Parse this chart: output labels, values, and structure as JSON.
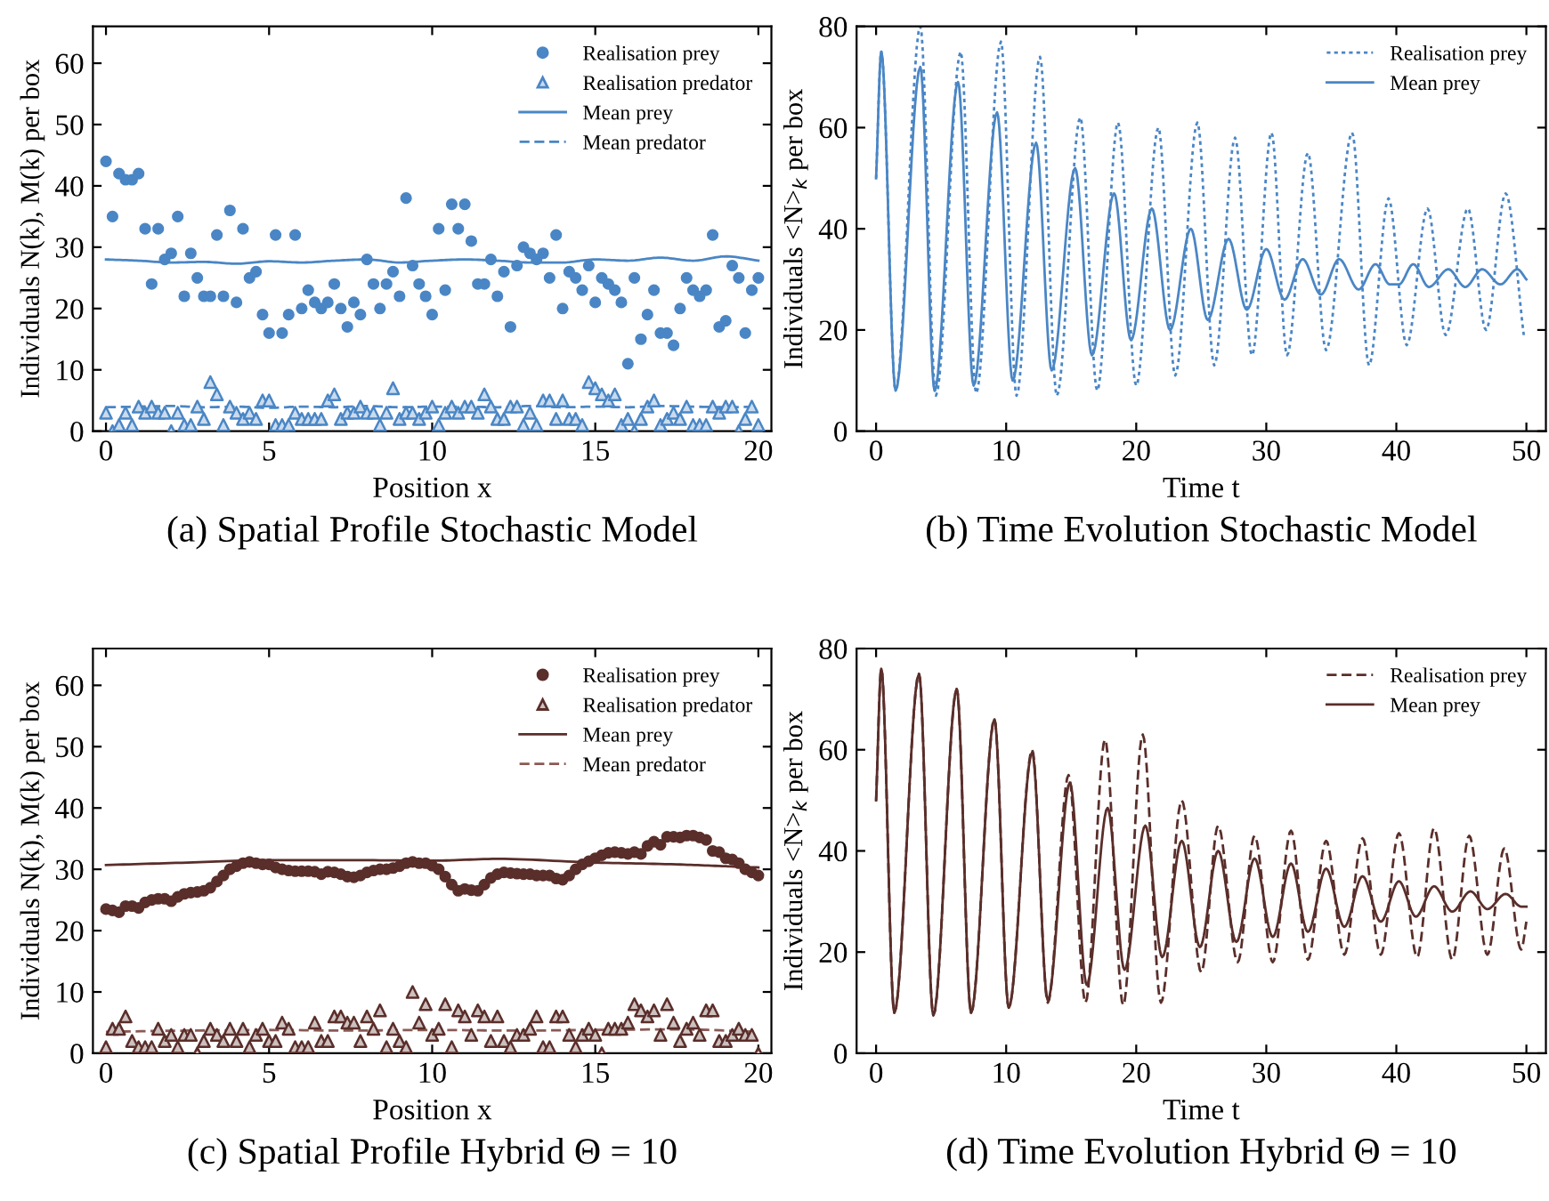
{
  "chart_data": [
    {
      "type": "scatter",
      "title": "(a) Spatial Profile Stochastic Model",
      "xlabel": "Position x",
      "ylabel": "Individuals N(k), M(k) per box",
      "xlim": [
        -0.4,
        20.4
      ],
      "ylim": [
        0,
        66
      ],
      "xticks": [
        0,
        5,
        10,
        15,
        20
      ],
      "yticks": [
        0,
        10,
        20,
        30,
        40,
        50,
        60
      ],
      "legend": "top right",
      "x": [
        0,
        0.2,
        0.4,
        0.6,
        0.8,
        1,
        1.2,
        1.4,
        1.6,
        1.8,
        2,
        2.2,
        2.4,
        2.6,
        2.8,
        3,
        3.2,
        3.4,
        3.6,
        3.8,
        4,
        4.2,
        4.4,
        4.6,
        4.8,
        5,
        5.2,
        5.4,
        5.6,
        5.8,
        6,
        6.2,
        6.4,
        6.6,
        6.8,
        7,
        7.2,
        7.4,
        7.6,
        7.8,
        8,
        8.2,
        8.4,
        8.6,
        8.8,
        9,
        9.2,
        9.4,
        9.6,
        9.8,
        10,
        10.2,
        10.4,
        10.6,
        10.8,
        11,
        11.2,
        11.4,
        11.6,
        11.8,
        12,
        12.2,
        12.4,
        12.6,
        12.8,
        13,
        13.2,
        13.4,
        13.6,
        13.8,
        14,
        14.2,
        14.4,
        14.6,
        14.8,
        15,
        15.2,
        15.4,
        15.6,
        15.8,
        16,
        16.2,
        16.4,
        16.6,
        16.8,
        17,
        17.2,
        17.4,
        17.6,
        17.8,
        18,
        18.2,
        18.4,
        18.6,
        18.8,
        19,
        19.2,
        19.4,
        19.6,
        19.8,
        20
      ],
      "series": [
        {
          "name": "Realisation prey",
          "marker": "circle",
          "color": "#4a86c5",
          "values": [
            44,
            35,
            42,
            41,
            41,
            42,
            33,
            24,
            33,
            28,
            29,
            35,
            22,
            29,
            25,
            22,
            22,
            32,
            22,
            36,
            21,
            33,
            25,
            26,
            19,
            16,
            32,
            16,
            19,
            32,
            20,
            23,
            21,
            20,
            21,
            24,
            20,
            17,
            21,
            19,
            28,
            24,
            20,
            24,
            26,
            22,
            38,
            27,
            24,
            22,
            19,
            33,
            23,
            37,
            33,
            37,
            31,
            24,
            24,
            28,
            22,
            26,
            17,
            27,
            30,
            29,
            28,
            29,
            25,
            32,
            20,
            26,
            25,
            23,
            27,
            21,
            25,
            24,
            23,
            21,
            11,
            25,
            15,
            19,
            23,
            16,
            16,
            14,
            20,
            25,
            23,
            22,
            23,
            32,
            17,
            18,
            27,
            25,
            16,
            23,
            25
          ]
        },
        {
          "name": "Realisation predator",
          "marker": "triangle",
          "color": "#4a86c5",
          "values": [
            3,
            0,
            1,
            3,
            1,
            4,
            3,
            4,
            3,
            3,
            0,
            3,
            1,
            1,
            4,
            2,
            8,
            6,
            1,
            4,
            3,
            2,
            3,
            2,
            5,
            5,
            1,
            1,
            1,
            3,
            2,
            2,
            2,
            2,
            5,
            6,
            2,
            3,
            3,
            4,
            3,
            3,
            1,
            3,
            7,
            2,
            3,
            3,
            2,
            3,
            4,
            1,
            3,
            4,
            3,
            4,
            4,
            3,
            6,
            4,
            2,
            2,
            4,
            4,
            1,
            3,
            1,
            5,
            5,
            2,
            5,
            2,
            2,
            1,
            8,
            7,
            6,
            5,
            6,
            1,
            2,
            0,
            2,
            4,
            5,
            1,
            2,
            3,
            2,
            4,
            1,
            1,
            1,
            4,
            3,
            4,
            4,
            0,
            2,
            4,
            1
          ]
        },
        {
          "name": "Mean prey",
          "type": "line",
          "line_style": "solid",
          "color": "#4a86c5",
          "x": [
            0,
            1,
            2,
            3,
            4,
            5,
            6,
            7,
            8,
            9,
            10,
            11,
            12,
            13,
            14,
            15,
            16,
            17,
            18,
            19,
            20
          ],
          "values": [
            28,
            27.8,
            27.5,
            27.6,
            27.3,
            27.7,
            27.5,
            27.8,
            28,
            27.5,
            27.8,
            28,
            27.8,
            27.5,
            27.5,
            28,
            27.8,
            28.3,
            27.8,
            28.5,
            27.8
          ]
        },
        {
          "name": "Mean predator",
          "type": "line",
          "line_style": "dashed",
          "color": "#4a86c5",
          "x": [
            0,
            1,
            2,
            3,
            4,
            5,
            6,
            7,
            8,
            9,
            10,
            11,
            12,
            13,
            14,
            15,
            16,
            17,
            18,
            19,
            20
          ],
          "values": [
            3.9,
            4,
            4.1,
            3.9,
            4,
            3.8,
            4,
            3.9,
            4.1,
            3.9,
            4,
            4,
            3.9,
            4.1,
            3.9,
            4,
            3.9,
            4.1,
            4,
            3.9,
            4
          ]
        }
      ]
    },
    {
      "type": "line",
      "title": "(b) Time Evolution Stochastic Model",
      "xlabel": "Time t",
      "ylabel": "Individuals <N>$_{k}$ per box",
      "xlim": [
        -1.5,
        51.5
      ],
      "ylim": [
        0,
        80
      ],
      "xticks": [
        0,
        10,
        20,
        30,
        40,
        50
      ],
      "yticks": [
        0,
        20,
        40,
        60,
        80
      ],
      "legend": "top right",
      "series": [
        {
          "name": "Realisation prey",
          "line_style": "dotted",
          "color": "#4a86c5",
          "x": [
            0,
            0.4,
            1.5,
            3.4,
            4.6,
            6.5,
            7.7,
            9.6,
            10.8,
            12.6,
            13.9,
            15.7,
            17.0,
            18.6,
            20.0,
            21.7,
            23.0,
            24.7,
            26.0,
            27.6,
            28.9,
            30.4,
            31.6,
            33.2,
            34.6,
            36.6,
            37.9,
            39.4,
            40.8,
            42.4,
            43.8,
            45.5,
            46.9,
            48.4,
            49.8
          ],
          "values": [
            50,
            75,
            8,
            80,
            7,
            75,
            7.5,
            77,
            7,
            74,
            7,
            62,
            8,
            61,
            9,
            60,
            11,
            61,
            13,
            58,
            15,
            59,
            15,
            55,
            16,
            59,
            13,
            46,
            17,
            44,
            19,
            44,
            20,
            47,
            19
          ]
        },
        {
          "name": "Mean prey",
          "line_style": "solid",
          "color": "#4a86c5",
          "x": [
            0,
            0.4,
            1.5,
            3.4,
            4.5,
            6.3,
            7.5,
            9.3,
            10.5,
            12.3,
            13.5,
            15.3,
            16.6,
            18.3,
            19.6,
            21.2,
            22.6,
            24.2,
            25.5,
            27.1,
            28.5,
            30.0,
            31.4,
            32.8,
            34.2,
            35.6,
            37.1,
            38.4,
            39.5,
            40.2,
            41.3,
            42.5,
            44.0,
            45.3,
            46.6,
            48.0,
            49.3,
            50
          ],
          "values": [
            50,
            75,
            8,
            72,
            8,
            69,
            9,
            63,
            10,
            57,
            12,
            52,
            15,
            47,
            18,
            44,
            20,
            40,
            22,
            38,
            24,
            36,
            26,
            34,
            27,
            34,
            28,
            33,
            29,
            29,
            33,
            28.5,
            32,
            28.5,
            32,
            29,
            32,
            30
          ]
        }
      ]
    },
    {
      "type": "scatter",
      "title": "(c) Spatial Profile Hybrid Θ = 10",
      "xlabel": "Position x",
      "ylabel": "Individuals N(k), M(k) per box",
      "xlim": [
        -0.4,
        20.4
      ],
      "ylim": [
        0,
        66
      ],
      "xticks": [
        0,
        5,
        10,
        15,
        20
      ],
      "yticks": [
        0,
        10,
        20,
        30,
        40,
        50,
        60
      ],
      "legend": "top right",
      "x": [
        0,
        0.2,
        0.4,
        0.6,
        0.8,
        1,
        1.2,
        1.4,
        1.6,
        1.8,
        2,
        2.2,
        2.4,
        2.6,
        2.8,
        3,
        3.2,
        3.4,
        3.6,
        3.8,
        4,
        4.2,
        4.4,
        4.6,
        4.8,
        5,
        5.2,
        5.4,
        5.6,
        5.8,
        6,
        6.2,
        6.4,
        6.6,
        6.8,
        7,
        7.2,
        7.4,
        7.6,
        7.8,
        8,
        8.2,
        8.4,
        8.6,
        8.8,
        9,
        9.2,
        9.4,
        9.6,
        9.8,
        10,
        10.2,
        10.4,
        10.6,
        10.8,
        11,
        11.2,
        11.4,
        11.6,
        11.8,
        12,
        12.2,
        12.4,
        12.6,
        12.8,
        13,
        13.2,
        13.4,
        13.6,
        13.8,
        14,
        14.2,
        14.4,
        14.6,
        14.8,
        15,
        15.2,
        15.4,
        15.6,
        15.8,
        16,
        16.2,
        16.4,
        16.6,
        16.8,
        17,
        17.2,
        17.4,
        17.6,
        17.8,
        18,
        18.2,
        18.4,
        18.6,
        18.8,
        19,
        19.2,
        19.4,
        19.6,
        19.8,
        20
      ],
      "series": [
        {
          "name": "Realisation prey",
          "marker": "circle",
          "color": "#5a2e2a",
          "values": [
            23.5,
            23.3,
            23,
            24,
            24,
            23.7,
            24.6,
            25,
            25.2,
            25.2,
            24.8,
            25.5,
            26,
            26.2,
            26.3,
            26.5,
            27,
            28,
            29,
            30,
            30.5,
            31,
            31.2,
            31,
            30.8,
            30.8,
            30.3,
            30,
            29.8,
            29.7,
            29.7,
            29.7,
            29.6,
            29.2,
            29.6,
            29.5,
            29.2,
            28.8,
            28.7,
            29,
            29.5,
            29.8,
            30,
            30,
            30.2,
            30.5,
            31,
            31.2,
            31,
            31,
            30.6,
            30,
            28.8,
            27.5,
            26.5,
            26.8,
            26.6,
            26.5,
            27.5,
            28.6,
            29.2,
            29.5,
            29.4,
            29.3,
            29.2,
            29.2,
            29,
            29,
            29,
            28.5,
            28.3,
            29,
            30,
            30.8,
            31.3,
            31.8,
            32.3,
            32.7,
            32.8,
            32.7,
            32.5,
            32.8,
            32.5,
            33.8,
            34.5,
            34,
            35.3,
            35.3,
            35.2,
            35.5,
            35.5,
            35.2,
            34.8,
            33,
            32.8,
            31.8,
            31.6,
            31,
            30,
            29.5,
            29
          ]
        },
        {
          "name": "Realisation predator",
          "marker": "triangle",
          "color": "#5a2e2a",
          "values": [
            1,
            4,
            4,
            6,
            2,
            1,
            1,
            1,
            4,
            2,
            3,
            1,
            3,
            3,
            0,
            2,
            4,
            3,
            2,
            4,
            2,
            4,
            1,
            3,
            4,
            2,
            2,
            5,
            4,
            1,
            1,
            1,
            5,
            2,
            2,
            6,
            6,
            5,
            5,
            2,
            6,
            4,
            7,
            1,
            4,
            2,
            1,
            10,
            5,
            8,
            3,
            4,
            8,
            1,
            7,
            6,
            3,
            7,
            6,
            2,
            6,
            2,
            1,
            3,
            3,
            4,
            6,
            1,
            1,
            6,
            6,
            3,
            1,
            3,
            4,
            3,
            0,
            4,
            4,
            4,
            5,
            8,
            7,
            6,
            7,
            3,
            8,
            5,
            2,
            4,
            5,
            3,
            7,
            7,
            2,
            2,
            3,
            4,
            3,
            3,
            0
          ]
        },
        {
          "name": "Mean prey",
          "type": "line",
          "line_style": "solid",
          "color": "#5a2e2a",
          "x": [
            0,
            2.5,
            5,
            7.5,
            10,
            12,
            15,
            17.5,
            19,
            20
          ],
          "values": [
            30.7,
            31.1,
            31.5,
            31.5,
            31.4,
            31.7,
            31.1,
            30.8,
            30.5,
            30.3
          ]
        },
        {
          "name": "Mean predator",
          "type": "line",
          "line_style": "dashed",
          "color": "#8a5a55",
          "x": [
            0,
            2.5,
            5,
            7.5,
            10,
            12.5,
            15,
            17.5,
            20
          ],
          "values": [
            3.5,
            3.7,
            3.8,
            3.7,
            3.8,
            3.7,
            3.8,
            3.9,
            3.5
          ]
        }
      ]
    },
    {
      "type": "line",
      "title": "(d) Time Evolution Hybrid Θ = 10",
      "xlabel": "Time t",
      "ylabel": "Individuals <N>$_{k}$ per box",
      "xlim": [
        -1.5,
        51.5
      ],
      "ylim": [
        0,
        80
      ],
      "xticks": [
        0,
        10,
        20,
        30,
        40,
        50
      ],
      "yticks": [
        0,
        20,
        40,
        60,
        80
      ],
      "legend": "top right",
      "series": [
        {
          "name": "Realisation prey",
          "line_style": "dashed",
          "color": "#5a2e2a",
          "x": [
            0,
            0.4,
            1.4,
            3.3,
            4.4,
            6.2,
            7.3,
            9.1,
            10.2,
            12.0,
            13.2,
            14.8,
            16.1,
            17.6,
            19.0,
            20.5,
            21.9,
            23.5,
            25.0,
            26.3,
            27.8,
            29.1,
            30.5,
            31.9,
            33.2,
            34.6,
            36.0,
            37.4,
            38.8,
            40.2,
            41.6,
            42.9,
            44.3,
            45.6,
            47.0,
            48.3,
            49.6,
            50
          ],
          "values": [
            50,
            76,
            8,
            75,
            7.5,
            72,
            8,
            66,
            9,
            60,
            10,
            55,
            10,
            62,
            9.5,
            63,
            10,
            50,
            16,
            45,
            18,
            43,
            18,
            44,
            18.5,
            42,
            19.5,
            42.5,
            19.5,
            43.5,
            19,
            44.5,
            18.5,
            43,
            19.5,
            40.5,
            20.5,
            26
          ]
        },
        {
          "name": "Mean prey",
          "line_style": "solid",
          "color": "#5a2e2a",
          "x": [
            0,
            0.4,
            1.4,
            3.3,
            4.4,
            6.2,
            7.3,
            9.1,
            10.2,
            12.0,
            13.2,
            14.9,
            16.2,
            17.8,
            19.1,
            20.7,
            22.0,
            23.5,
            24.9,
            26.3,
            27.7,
            29.1,
            30.5,
            31.9,
            33.2,
            34.6,
            36.0,
            37.4,
            38.8,
            40.2,
            41.5,
            42.9,
            44.3,
            45.7,
            47.0,
            48.4,
            49.6,
            50
          ],
          "values": [
            50,
            76,
            8,
            75,
            7.5,
            72,
            8,
            66,
            9,
            59.5,
            10.5,
            53.5,
            13.5,
            48.5,
            16.5,
            45,
            19,
            42,
            21,
            40,
            22,
            38.5,
            23,
            37.5,
            24,
            36.5,
            25,
            35,
            26,
            34,
            27,
            33,
            28,
            32,
            28.5,
            31.5,
            29,
            29
          ]
        }
      ]
    }
  ]
}
